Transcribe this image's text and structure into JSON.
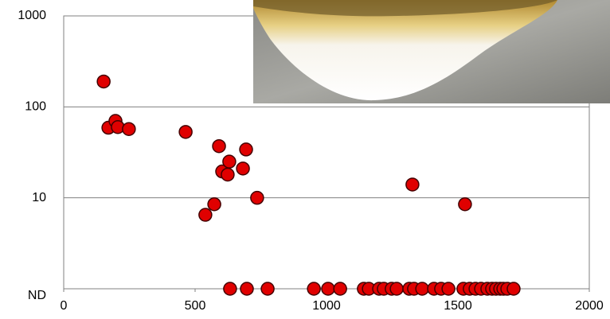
{
  "chart_data": {
    "type": "scatter",
    "log_y": true,
    "grid": true,
    "color": "#e00000",
    "x": [
      152,
      170,
      197,
      206,
      248,
      464,
      591,
      603,
      630,
      624,
      682,
      694,
      736,
      539,
      573,
      1327,
      1527,
      633,
      697,
      776,
      952,
      1006,
      1052,
      1142,
      1161,
      1200,
      1218,
      1248,
      1267,
      1315,
      1333,
      1364,
      1409,
      1436,
      1464,
      1521,
      1545,
      1567,
      1588,
      1612,
      1630,
      1645,
      1661,
      1673,
      1688,
      1712
    ],
    "values": [
      190,
      59,
      70,
      60,
      57,
      53,
      37,
      19.5,
      25,
      18,
      21,
      34,
      10,
      6.5,
      8.5,
      14,
      8.5,
      1,
      1,
      1,
      1,
      1,
      1,
      1,
      1,
      1,
      1,
      1,
      1,
      1,
      1,
      1,
      1,
      1,
      1,
      1,
      1,
      1,
      1,
      1,
      1,
      1,
      1,
      1,
      1,
      1
    ],
    "xlim": [
      0,
      2000
    ],
    "xticks": [
      0,
      500,
      1000,
      1500,
      2000
    ],
    "ylim": [
      1,
      1000
    ],
    "yticks": [
      {
        "value": 1,
        "label": "ND"
      },
      10,
      100,
      1000
    ]
  }
}
